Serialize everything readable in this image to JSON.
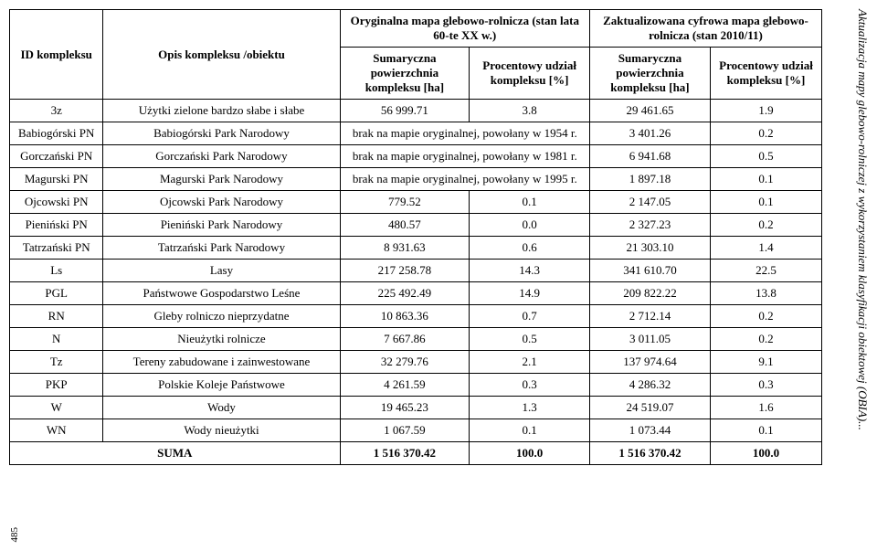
{
  "sideCaption": "Aktualizacja mapy glebowo-rolniczej z wykorzystaniem klasyfikacji obiektowej (OBIA)...",
  "pageNumber": "485",
  "header": {
    "id": "ID kompleksu",
    "opis": "Opis kompleksu /obiektu",
    "origGroup": "Oryginalna mapa glebowo-rolnicza (stan lata 60-te XX w.)",
    "updGroup": "Zaktualizowana cyfrowa mapa glebowo-rolnicza (stan 2010/11)",
    "origArea": "Sumaryczna powierzch­nia kompleksu [ha]",
    "origPct": "Procentowy udział kompleksu [%]",
    "updArea": "Sumaryczna powierzchnia kompleksu [ha]",
    "updPct": "Procentowy udział kompleksu [%]"
  },
  "rows": [
    {
      "id": "3z",
      "opis": "Użytki zielone bardzo słabe i słabe",
      "a1": "56 999.71",
      "p1": "3.8",
      "a2": "29 461.65",
      "p2": "1.9"
    },
    {
      "id": "Babiogórski PN",
      "opis": "Babiogórski Park Narodowy",
      "a1": "brak na mapie oryginalnej, powołany w 1954 r.",
      "p1": "",
      "a2": "3 401.26",
      "p2": "0.2",
      "span": true
    },
    {
      "id": "Gorczański PN",
      "opis": "Gorczański Park Narodowy",
      "a1": "brak na mapie oryginalnej, powołany w 1981 r.",
      "p1": "",
      "a2": "6 941.68",
      "p2": "0.5",
      "span": true
    },
    {
      "id": "Magurski PN",
      "opis": "Magurski Park Narodowy",
      "a1": "brak na mapie oryginalnej, powołany w 1995 r.",
      "p1": "",
      "a2": "1 897.18",
      "p2": "0.1",
      "span": true
    },
    {
      "id": "Ojcowski PN",
      "opis": "Ojcowski Park Narodowy",
      "a1": "779.52",
      "p1": "0.1",
      "a2": "2 147.05",
      "p2": "0.1"
    },
    {
      "id": "Pieniński PN",
      "opis": "Pieniński Park Narodowy",
      "a1": "480.57",
      "p1": "0.0",
      "a2": "2 327.23",
      "p2": "0.2"
    },
    {
      "id": "Tatrzański PN",
      "opis": "Tatrzański Park Narodowy",
      "a1": "8 931.63",
      "p1": "0.6",
      "a2": "21 303.10",
      "p2": "1.4"
    },
    {
      "id": "Ls",
      "opis": "Lasy",
      "a1": "217 258.78",
      "p1": "14.3",
      "a2": "341 610.70",
      "p2": "22.5"
    },
    {
      "id": "PGL",
      "opis": "Państwowe Gospodarstwo Leśne",
      "a1": "225 492.49",
      "p1": "14.9",
      "a2": "209 822.22",
      "p2": "13.8"
    },
    {
      "id": "RN",
      "opis": "Gleby rolniczo nieprzydatne",
      "a1": "10 863.36",
      "p1": "0.7",
      "a2": "2 712.14",
      "p2": "0.2"
    },
    {
      "id": "N",
      "opis": "Nieużytki rolnicze",
      "a1": "7 667.86",
      "p1": "0.5",
      "a2": "3 011.05",
      "p2": "0.2"
    },
    {
      "id": "Tz",
      "opis": "Tereny zabudowane i zainwestowane",
      "a1": "32 279.76",
      "p1": "2.1",
      "a2": "137 974.64",
      "p2": "9.1"
    },
    {
      "id": "PKP",
      "opis": "Polskie Koleje Państwowe",
      "a1": "4 261.59",
      "p1": "0.3",
      "a2": "4 286.32",
      "p2": "0.3"
    },
    {
      "id": "W",
      "opis": "Wody",
      "a1": "19 465.23",
      "p1": "1.3",
      "a2": "24 519.07",
      "p2": "1.6"
    },
    {
      "id": "WN",
      "opis": "Wody nieużytki",
      "a1": "1 067.59",
      "p1": "0.1",
      "a2": "1 073.44",
      "p2": "0.1"
    }
  ],
  "sum": {
    "id": "",
    "opis": "SUMA",
    "a1": "1 516 370.42",
    "p1": "100.0",
    "a2": "1 516 370.42",
    "p2": "100.0"
  }
}
